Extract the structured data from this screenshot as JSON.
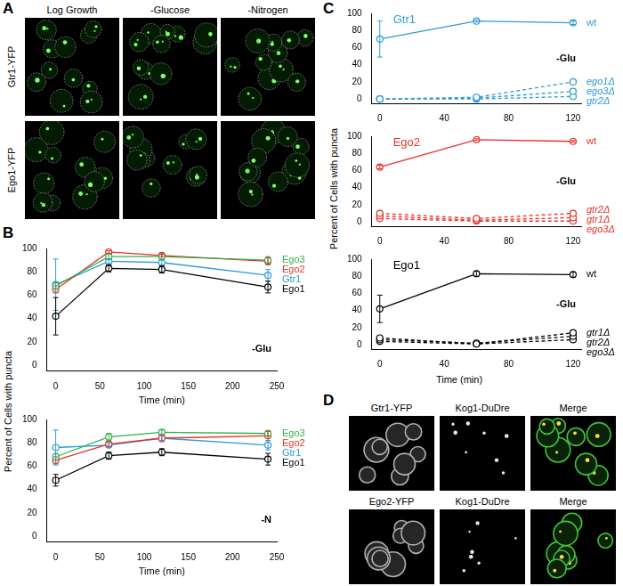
{
  "figure": {
    "A": {
      "label": "A",
      "columns": [
        "Log Growth",
        "-Glucose",
        "-Nitrogen"
      ],
      "rows": [
        "Gtr1-YFP",
        "Ego1-YFP"
      ]
    },
    "B": {
      "label": "B",
      "ylabel": "Percent of Cells with puncta"
    },
    "C": {
      "label": "C",
      "ylabel": "Percent of Cells with puncta",
      "xlabel": "Time (min)"
    },
    "D": {
      "label": "D",
      "rows": [
        [
          "Gtr1-YFP",
          "Kog1-DuDre",
          "Merge"
        ],
        [
          "Ego2-YFP",
          "Kog1-DuDre",
          "Merge"
        ]
      ]
    }
  },
  "chart_data": [
    {
      "panel": "B",
      "type": "line",
      "annotation": "-Glu",
      "xlabel": "Time (min)",
      "grid": false,
      "x": [
        0,
        60,
        120,
        240
      ],
      "xlim": [
        -10,
        250
      ],
      "xticks": [
        0,
        50,
        100,
        150,
        200,
        250
      ],
      "ylim": [
        -5,
        100
      ],
      "yticks": [
        0,
        20,
        40,
        60,
        80,
        100
      ],
      "series": [
        {
          "name": "Ego3",
          "color": "#2db34a",
          "marker": "circle",
          "line_style": "solid",
          "values": [
            68,
            93,
            93,
            90
          ],
          "errors": [
            3,
            2,
            2,
            3
          ]
        },
        {
          "name": "Ego2",
          "color": "#e8302a",
          "marker": "circle",
          "line_style": "solid",
          "values": [
            65,
            97,
            94,
            89
          ],
          "errors": [
            3,
            1,
            1,
            3
          ]
        },
        {
          "name": "Gtr1",
          "color": "#2f9bd6",
          "marker": "circle",
          "line_style": "solid",
          "values": [
            69,
            89,
            88,
            77
          ],
          "errors": [
            22,
            2,
            2,
            5
          ]
        },
        {
          "name": "Ego1",
          "color": "#000000",
          "marker": "circle",
          "line_style": "solid",
          "values": [
            42,
            83,
            82,
            67
          ],
          "errors": [
            16,
            3,
            3,
            5
          ]
        }
      ]
    },
    {
      "panel": "B",
      "type": "line",
      "annotation": "-N",
      "xlabel": "Time (min)",
      "grid": false,
      "x": [
        0,
        60,
        120,
        240
      ],
      "xlim": [
        -10,
        250
      ],
      "xticks": [
        0,
        50,
        100,
        150,
        200,
        250
      ],
      "ylim": [
        -5,
        100
      ],
      "yticks": [
        0,
        20,
        40,
        60,
        80,
        100
      ],
      "series": [
        {
          "name": "Ego3",
          "color": "#2db34a",
          "marker": "circle",
          "line_style": "solid",
          "values": [
            68,
            85,
            89,
            88
          ],
          "errors": [
            3,
            3,
            2,
            2
          ]
        },
        {
          "name": "Ego2",
          "color": "#e8302a",
          "marker": "circle",
          "line_style": "solid",
          "values": [
            65,
            79,
            84,
            86
          ],
          "errors": [
            3,
            2,
            3,
            4
          ]
        },
        {
          "name": "Gtr1",
          "color": "#2f9bd6",
          "marker": "circle",
          "line_style": "solid",
          "values": [
            76,
            78,
            84,
            78
          ],
          "errors": [
            15,
            2,
            2,
            4
          ]
        },
        {
          "name": "Ego1",
          "color": "#000000",
          "marker": "circle",
          "line_style": "solid",
          "values": [
            48,
            69,
            72,
            66
          ],
          "errors": [
            5,
            3,
            3,
            5
          ]
        }
      ]
    },
    {
      "panel": "C",
      "type": "line",
      "title": "Gtr1",
      "color": "#2f9bd6",
      "annotation": "-Glu",
      "grid": false,
      "x": [
        0,
        60,
        120
      ],
      "xlim": [
        -5,
        125
      ],
      "xticks": [
        0,
        40,
        80,
        120
      ],
      "ylim": [
        -5,
        100
      ],
      "yticks": [
        0,
        20,
        40,
        60,
        80,
        100
      ],
      "series": [
        {
          "name": "wt",
          "color": "#2f9bd6",
          "marker": "circle",
          "line_style": "solid",
          "values": [
            70,
            91,
            89
          ],
          "errors": [
            21,
            1,
            2
          ]
        },
        {
          "name": "ego1Δ",
          "color": "#2f9bd6",
          "marker": "circle",
          "line_style": "dashed",
          "values": [
            0,
            2,
            20
          ]
        },
        {
          "name": "ego3Δ",
          "color": "#2f9bd6",
          "marker": "circle",
          "line_style": "dashed",
          "values": [
            0,
            1,
            9
          ]
        },
        {
          "name": "gtr2Δ",
          "color": "#2f9bd6",
          "marker": "circle",
          "line_style": "dashed",
          "values": [
            0,
            0,
            3
          ]
        }
      ]
    },
    {
      "panel": "C",
      "type": "line",
      "title": "Ego2",
      "color": "#e8302a",
      "annotation": "-Glu",
      "grid": false,
      "x": [
        0,
        60,
        120
      ],
      "xlim": [
        -5,
        125
      ],
      "xticks": [
        0,
        40,
        80,
        120
      ],
      "ylim": [
        -5,
        100
      ],
      "yticks": [
        0,
        20,
        40,
        60,
        80,
        100
      ],
      "series": [
        {
          "name": "wt",
          "color": "#e8302a",
          "marker": "circle",
          "line_style": "solid",
          "values": [
            64,
            96,
            94
          ],
          "errors": [
            2,
            1,
            1
          ]
        },
        {
          "name": "gtr2Δ",
          "color": "#e8302a",
          "marker": "circle",
          "line_style": "dashed",
          "values": [
            10,
            4,
            10
          ]
        },
        {
          "name": "gtr1Δ",
          "color": "#e8302a",
          "marker": "circle",
          "line_style": "dashed",
          "values": [
            7,
            2,
            5
          ]
        },
        {
          "name": "ego3Δ",
          "color": "#e8302a",
          "marker": "circle",
          "line_style": "dashed",
          "values": [
            4,
            1,
            1
          ]
        }
      ]
    },
    {
      "panel": "C",
      "type": "line",
      "title": "Ego1",
      "color": "#000000",
      "annotation": "-Glu",
      "grid": false,
      "x": [
        0,
        60,
        120
      ],
      "xlim": [
        -5,
        125
      ],
      "xticks": [
        0,
        40,
        80,
        120
      ],
      "ylim": [
        -5,
        100
      ],
      "yticks": [
        0,
        20,
        40,
        60,
        80,
        100
      ],
      "series": [
        {
          "name": "wt",
          "color": "#000000",
          "marker": "circle",
          "line_style": "solid",
          "values": [
            42,
            83,
            82
          ],
          "errors": [
            16,
            3,
            3
          ]
        },
        {
          "name": "gtr1Δ",
          "color": "#000000",
          "marker": "circle",
          "line_style": "dashed",
          "values": [
            8,
            1,
            14
          ]
        },
        {
          "name": "gtr2Δ",
          "color": "#000000",
          "marker": "circle",
          "line_style": "dashed",
          "values": [
            6,
            2,
            10
          ]
        },
        {
          "name": "ego3Δ",
          "color": "#000000",
          "marker": "circle",
          "line_style": "dashed",
          "values": [
            4,
            1,
            6
          ]
        }
      ]
    }
  ]
}
